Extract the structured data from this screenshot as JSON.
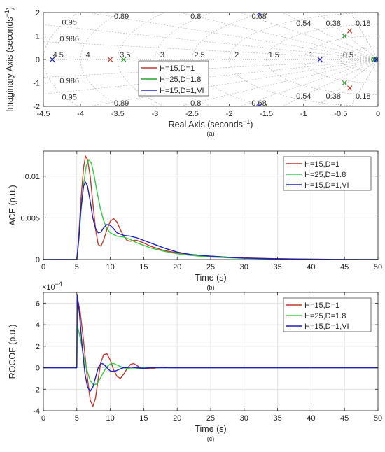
{
  "chart_data": [
    {
      "type": "scatter",
      "subplot": "a",
      "caption": "(a)",
      "xlabel": "Real Axis (seconds",
      "xlabel_sup": "−1",
      "xlabel_tail": ")",
      "ylabel": "Imaginary Axis (seconds",
      "ylabel_sup": "−1",
      "ylabel_tail": ")",
      "xlim": [
        -4.5,
        0
      ],
      "ylim": [
        -2,
        2
      ],
      "xticks": [
        -4.5,
        -4,
        -3.5,
        -3,
        -2.5,
        -2,
        -1.5,
        -1,
        -0.5,
        0
      ],
      "xtick_labels": [
        "-4.5",
        "-4",
        "-3.5",
        "-3",
        "-2.5",
        "-2",
        "-1.5",
        "-1",
        "-0.5",
        "0"
      ],
      "yticks": [
        -2,
        -1,
        0,
        1,
        2
      ],
      "ytick_labels": [
        "-2",
        "-1",
        "0",
        "1",
        "2"
      ],
      "grid": "s-plane damping/natural-frequency grid",
      "damping_labels": [
        "0.95",
        "0.89",
        "0.8",
        "0.68",
        "0.54",
        "0.38",
        "0.18",
        "0.986"
      ],
      "damping_values": [
        0.95,
        0.89,
        0.8,
        0.68,
        0.54,
        0.38,
        0.18,
        0.986
      ],
      "freq_labels": [
        "4.5",
        "4",
        "3.5",
        "3",
        "2.5",
        "2",
        "1.5",
        "1",
        "0.5"
      ],
      "freq_values": [
        4.5,
        4,
        3.5,
        3,
        2.5,
        2,
        1.5,
        1,
        0.5
      ],
      "legend_position": "lower-center",
      "series": [
        {
          "name": "H=15,D=1",
          "color": "#c0392b",
          "poles": [
            [
              -3.6,
              0
            ],
            [
              -0.38,
              1.22
            ],
            [
              -0.38,
              -1.22
            ],
            [
              -0.05,
              0
            ]
          ],
          "zeros": [
            [
              -0.05,
              0
            ]
          ]
        },
        {
          "name": "H=25,D=1.8",
          "color": "#2ca02c",
          "poles": [
            [
              -3.42,
              0
            ],
            [
              -0.45,
              1.0
            ],
            [
              -0.45,
              -1.0
            ],
            [
              -0.05,
              0
            ]
          ],
          "zeros": [
            [
              -0.05,
              0
            ]
          ]
        },
        {
          "name": "H=15,D=1,VI",
          "color": "#2222cc",
          "poles": [
            [
              -4.38,
              0
            ],
            [
              -1.6,
              1.98
            ],
            [
              -1.6,
              -1.98
            ],
            [
              -0.78,
              0
            ],
            [
              -0.02,
              0
            ]
          ],
          "zeros": [
            [
              -0.02,
              0
            ]
          ]
        }
      ]
    },
    {
      "type": "line",
      "subplot": "b",
      "caption": "(b)",
      "xlabel": "Time (s)",
      "ylabel": "ACE (p.u.)",
      "xlim": [
        0,
        50
      ],
      "ylim": [
        0,
        0.013
      ],
      "xticks": [
        0,
        5,
        10,
        15,
        20,
        25,
        30,
        35,
        40,
        45,
        50
      ],
      "xtick_labels": [
        "0",
        "5",
        "10",
        "15",
        "20",
        "25",
        "30",
        "35",
        "40",
        "45",
        "50"
      ],
      "yticks": [
        0,
        0.005,
        0.01
      ],
      "ytick_labels": [
        "0",
        "0.005",
        "0.01"
      ],
      "grid": true,
      "legend_position": "top-right",
      "series": [
        {
          "name": "H=15,D=1",
          "color": "#c0392b",
          "x": [
            0,
            5,
            5.3,
            5.6,
            6.0,
            6.3,
            6.6,
            7.0,
            7.4,
            7.8,
            8.2,
            8.6,
            9.0,
            9.5,
            10.0,
            10.5,
            11.0,
            11.5,
            12.0,
            12.5,
            13.0,
            13.5,
            14.0,
            15,
            16,
            18,
            20,
            22,
            25,
            28,
            30,
            35,
            40,
            45,
            50
          ],
          "y": [
            0,
            0,
            0.003,
            0.007,
            0.011,
            0.0124,
            0.012,
            0.01,
            0.0068,
            0.0036,
            0.0018,
            0.0016,
            0.0023,
            0.0036,
            0.0046,
            0.0049,
            0.0045,
            0.0036,
            0.0028,
            0.0023,
            0.0022,
            0.0023,
            0.0023,
            0.002,
            0.0016,
            0.0011,
            0.0008,
            0.0006,
            0.0004,
            0.00025,
            0.0002,
            0.0001,
            5e-05,
            2e-05,
            1e-05
          ]
        },
        {
          "name": "H=25,D=1.8",
          "color": "#2ecc40",
          "x": [
            0,
            5,
            5.3,
            5.6,
            6.0,
            6.4,
            6.8,
            7.2,
            7.6,
            8.0,
            8.5,
            9.0,
            9.5,
            10.0,
            11.0,
            12.0,
            13.0,
            14.0,
            15,
            16,
            18,
            20,
            22,
            25,
            28,
            30,
            35,
            40,
            45,
            50
          ],
          "y": [
            0,
            0,
            0.0025,
            0.0055,
            0.009,
            0.0112,
            0.012,
            0.0115,
            0.01,
            0.0082,
            0.0062,
            0.0047,
            0.0037,
            0.0032,
            0.0028,
            0.0027,
            0.0024,
            0.002,
            0.0017,
            0.0014,
            0.001,
            0.0007,
            0.0005,
            0.0003,
            0.0002,
            0.00015,
            7e-05,
            3e-05,
            1e-05,
            0.0
          ]
        },
        {
          "name": "H=15,D=1,VI",
          "color": "#1f1fbf",
          "x": [
            0,
            5,
            5.3,
            5.6,
            6.0,
            6.3,
            6.6,
            7.0,
            7.4,
            7.8,
            8.2,
            8.6,
            9.0,
            9.5,
            10.0,
            10.5,
            11.0,
            12.0,
            13.0,
            14.0,
            15,
            16,
            18,
            20,
            22,
            25,
            28,
            30,
            35,
            40,
            45,
            50
          ],
          "y": [
            0,
            0,
            0.0025,
            0.006,
            0.0088,
            0.0093,
            0.0088,
            0.007,
            0.005,
            0.0037,
            0.0032,
            0.0033,
            0.0038,
            0.0042,
            0.0041,
            0.0037,
            0.0032,
            0.0029,
            0.0028,
            0.0026,
            0.0023,
            0.002,
            0.0014,
            0.0009,
            0.0006,
            0.0004,
            0.00025,
            0.00018,
            8e-05,
            3e-05,
            1e-05,
            0.0
          ]
        }
      ]
    },
    {
      "type": "line",
      "subplot": "c",
      "caption": "(c)",
      "xlabel": "Time (s)",
      "ylabel": "ROCOF (p.u.)",
      "exponent_label": "×10",
      "exponent_sup": "−4",
      "xlim": [
        0,
        50
      ],
      "ylim": [
        -4,
        7
      ],
      "xticks": [
        0,
        5,
        10,
        15,
        20,
        25,
        30,
        35,
        40,
        45,
        50
      ],
      "xtick_labels": [
        "0",
        "5",
        "10",
        "15",
        "20",
        "25",
        "30",
        "35",
        "40",
        "45",
        "50"
      ],
      "yticks": [
        -4,
        -2,
        0,
        2,
        4,
        6
      ],
      "ytick_labels": [
        "-4",
        "-2",
        "0",
        "2",
        "4",
        "6"
      ],
      "grid": true,
      "legend_position": "top-right",
      "series": [
        {
          "name": "H=15,D=1",
          "color": "#c0392b",
          "x": [
            0,
            5,
            5.05,
            5.5,
            6.0,
            6.5,
            7.0,
            7.4,
            7.8,
            8.2,
            8.6,
            9.0,
            9.5,
            10.0,
            10.5,
            11.0,
            11.5,
            12.0,
            12.5,
            13.0,
            13.5,
            14.0,
            14.5,
            15.0,
            16,
            17,
            18,
            19,
            20,
            25,
            30,
            40,
            50
          ],
          "y": [
            0,
            0,
            6.6,
            5.2,
            2.5,
            -0.5,
            -3.0,
            -3.6,
            -2.8,
            -1.0,
            0.5,
            1.2,
            1.3,
            0.7,
            -0.2,
            -0.8,
            -1.0,
            -0.6,
            -0.1,
            0.3,
            0.4,
            0.2,
            0.0,
            -0.1,
            -0.1,
            0.0,
            0.05,
            0.0,
            0.0,
            0.0,
            0.0,
            0.0,
            0.0
          ]
        },
        {
          "name": "H=25,D=1.8",
          "color": "#2ecc40",
          "x": [
            0,
            5,
            5.05,
            5.5,
            6.0,
            6.5,
            7.0,
            7.5,
            8.0,
            8.5,
            9.0,
            9.5,
            10.0,
            10.5,
            11.0,
            12.0,
            13.0,
            14.0,
            15.0,
            16,
            18,
            20,
            25,
            30,
            40,
            50
          ],
          "y": [
            0,
            0,
            4.0,
            2.8,
            1.2,
            -0.2,
            -1.2,
            -1.6,
            -1.5,
            -1.0,
            -0.4,
            0.1,
            0.35,
            0.4,
            0.25,
            0.0,
            -0.1,
            -0.1,
            0.0,
            0.0,
            0.0,
            0.0,
            0.0,
            0.0,
            0.0,
            0.0
          ]
        },
        {
          "name": "H=15,D=1,VI",
          "color": "#1f1fbf",
          "x": [
            0,
            5,
            5.05,
            5.4,
            5.8,
            6.2,
            6.6,
            7.0,
            7.4,
            7.8,
            8.2,
            8.6,
            9.0,
            9.5,
            10.0,
            10.5,
            11.0,
            11.5,
            12.0,
            13.0,
            14.0,
            15.0,
            16,
            18,
            20,
            25,
            30,
            40,
            50
          ],
          "y": [
            0,
            0,
            6.8,
            5.0,
            2.0,
            -0.5,
            -1.8,
            -2.2,
            -1.8,
            -0.9,
            0.0,
            0.4,
            0.35,
            0.0,
            -0.3,
            -0.35,
            -0.25,
            -0.1,
            0.0,
            0.05,
            0.0,
            -0.05,
            0.0,
            0.0,
            0.0,
            0.0,
            0.0,
            0.0,
            0.0
          ]
        }
      ]
    }
  ]
}
